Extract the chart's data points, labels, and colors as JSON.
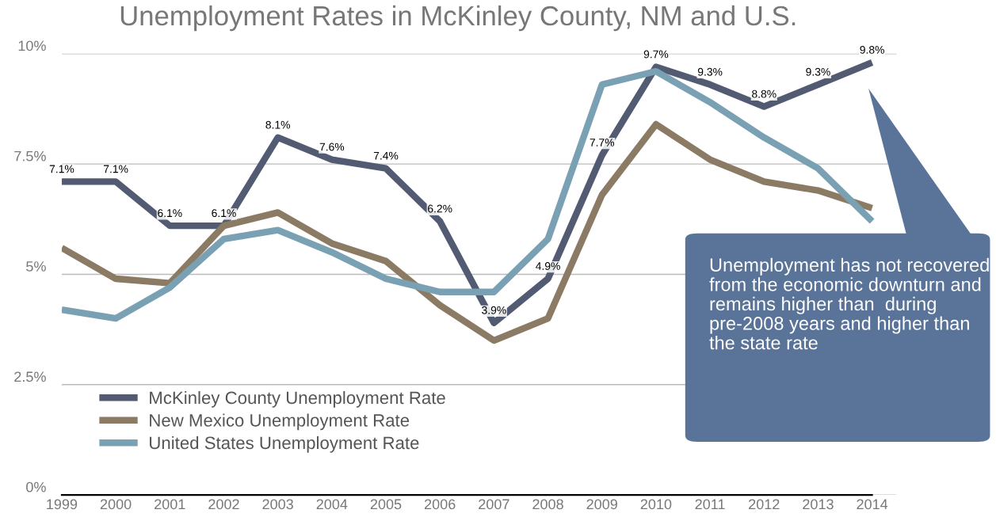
{
  "chart_data": {
    "type": "line",
    "title": "Unemployment Rates in McKinley County, NM and U.S.",
    "categories": [
      "1999",
      "2000",
      "2001",
      "2002",
      "2003",
      "2004",
      "2005",
      "2006",
      "2007",
      "2008",
      "2009",
      "2010",
      "2011",
      "2012",
      "2013",
      "2014"
    ],
    "series": [
      {
        "name": "McKinley County Unemployment Rate",
        "color": "#525b72",
        "values": [
          7.1,
          7.1,
          6.1,
          6.1,
          8.1,
          7.6,
          7.4,
          6.2,
          3.9,
          4.9,
          7.7,
          9.7,
          9.3,
          8.8,
          9.3,
          9.8
        ],
        "value_labels": [
          "7.1%",
          "7.1%",
          "6.1%",
          "6.1%",
          "8.1%",
          "7.6%",
          "7.4%",
          "6.2%",
          "3.9%",
          "4.9%",
          "7.7%",
          "9.7%",
          "9.3%",
          "8.8%",
          "9.3%",
          "9.8%"
        ]
      },
      {
        "name": "New Mexico Unemployment Rate",
        "color": "#8c7b64",
        "values": [
          5.6,
          4.9,
          4.8,
          6.1,
          6.4,
          5.7,
          5.3,
          4.3,
          3.5,
          4.0,
          6.8,
          8.4,
          7.6,
          7.1,
          6.9,
          6.5
        ]
      },
      {
        "name": "United States Unemployment Rate",
        "color": "#7aa0b3",
        "values": [
          4.2,
          4.0,
          4.7,
          5.8,
          6.0,
          5.5,
          4.9,
          4.6,
          4.6,
          5.8,
          9.3,
          9.6,
          8.9,
          8.1,
          7.4,
          6.2
        ]
      }
    ],
    "ylim": [
      0,
      10
    ],
    "yticks": [
      {
        "value": 0,
        "label": "0%"
      },
      {
        "value": 2.5,
        "label": "2.5%"
      },
      {
        "value": 5,
        "label": "5%"
      },
      {
        "value": 7.5,
        "label": "7.5%"
      },
      {
        "value": 10,
        "label": "10%"
      }
    ],
    "grid": "y",
    "legend": "bottom left",
    "marker": "none",
    "line_style": "solid",
    "annotations": [
      "Unemployment has not recovered from the economic downturn and remains higher than  during pre-2008 years and higher than the state rate"
    ]
  }
}
